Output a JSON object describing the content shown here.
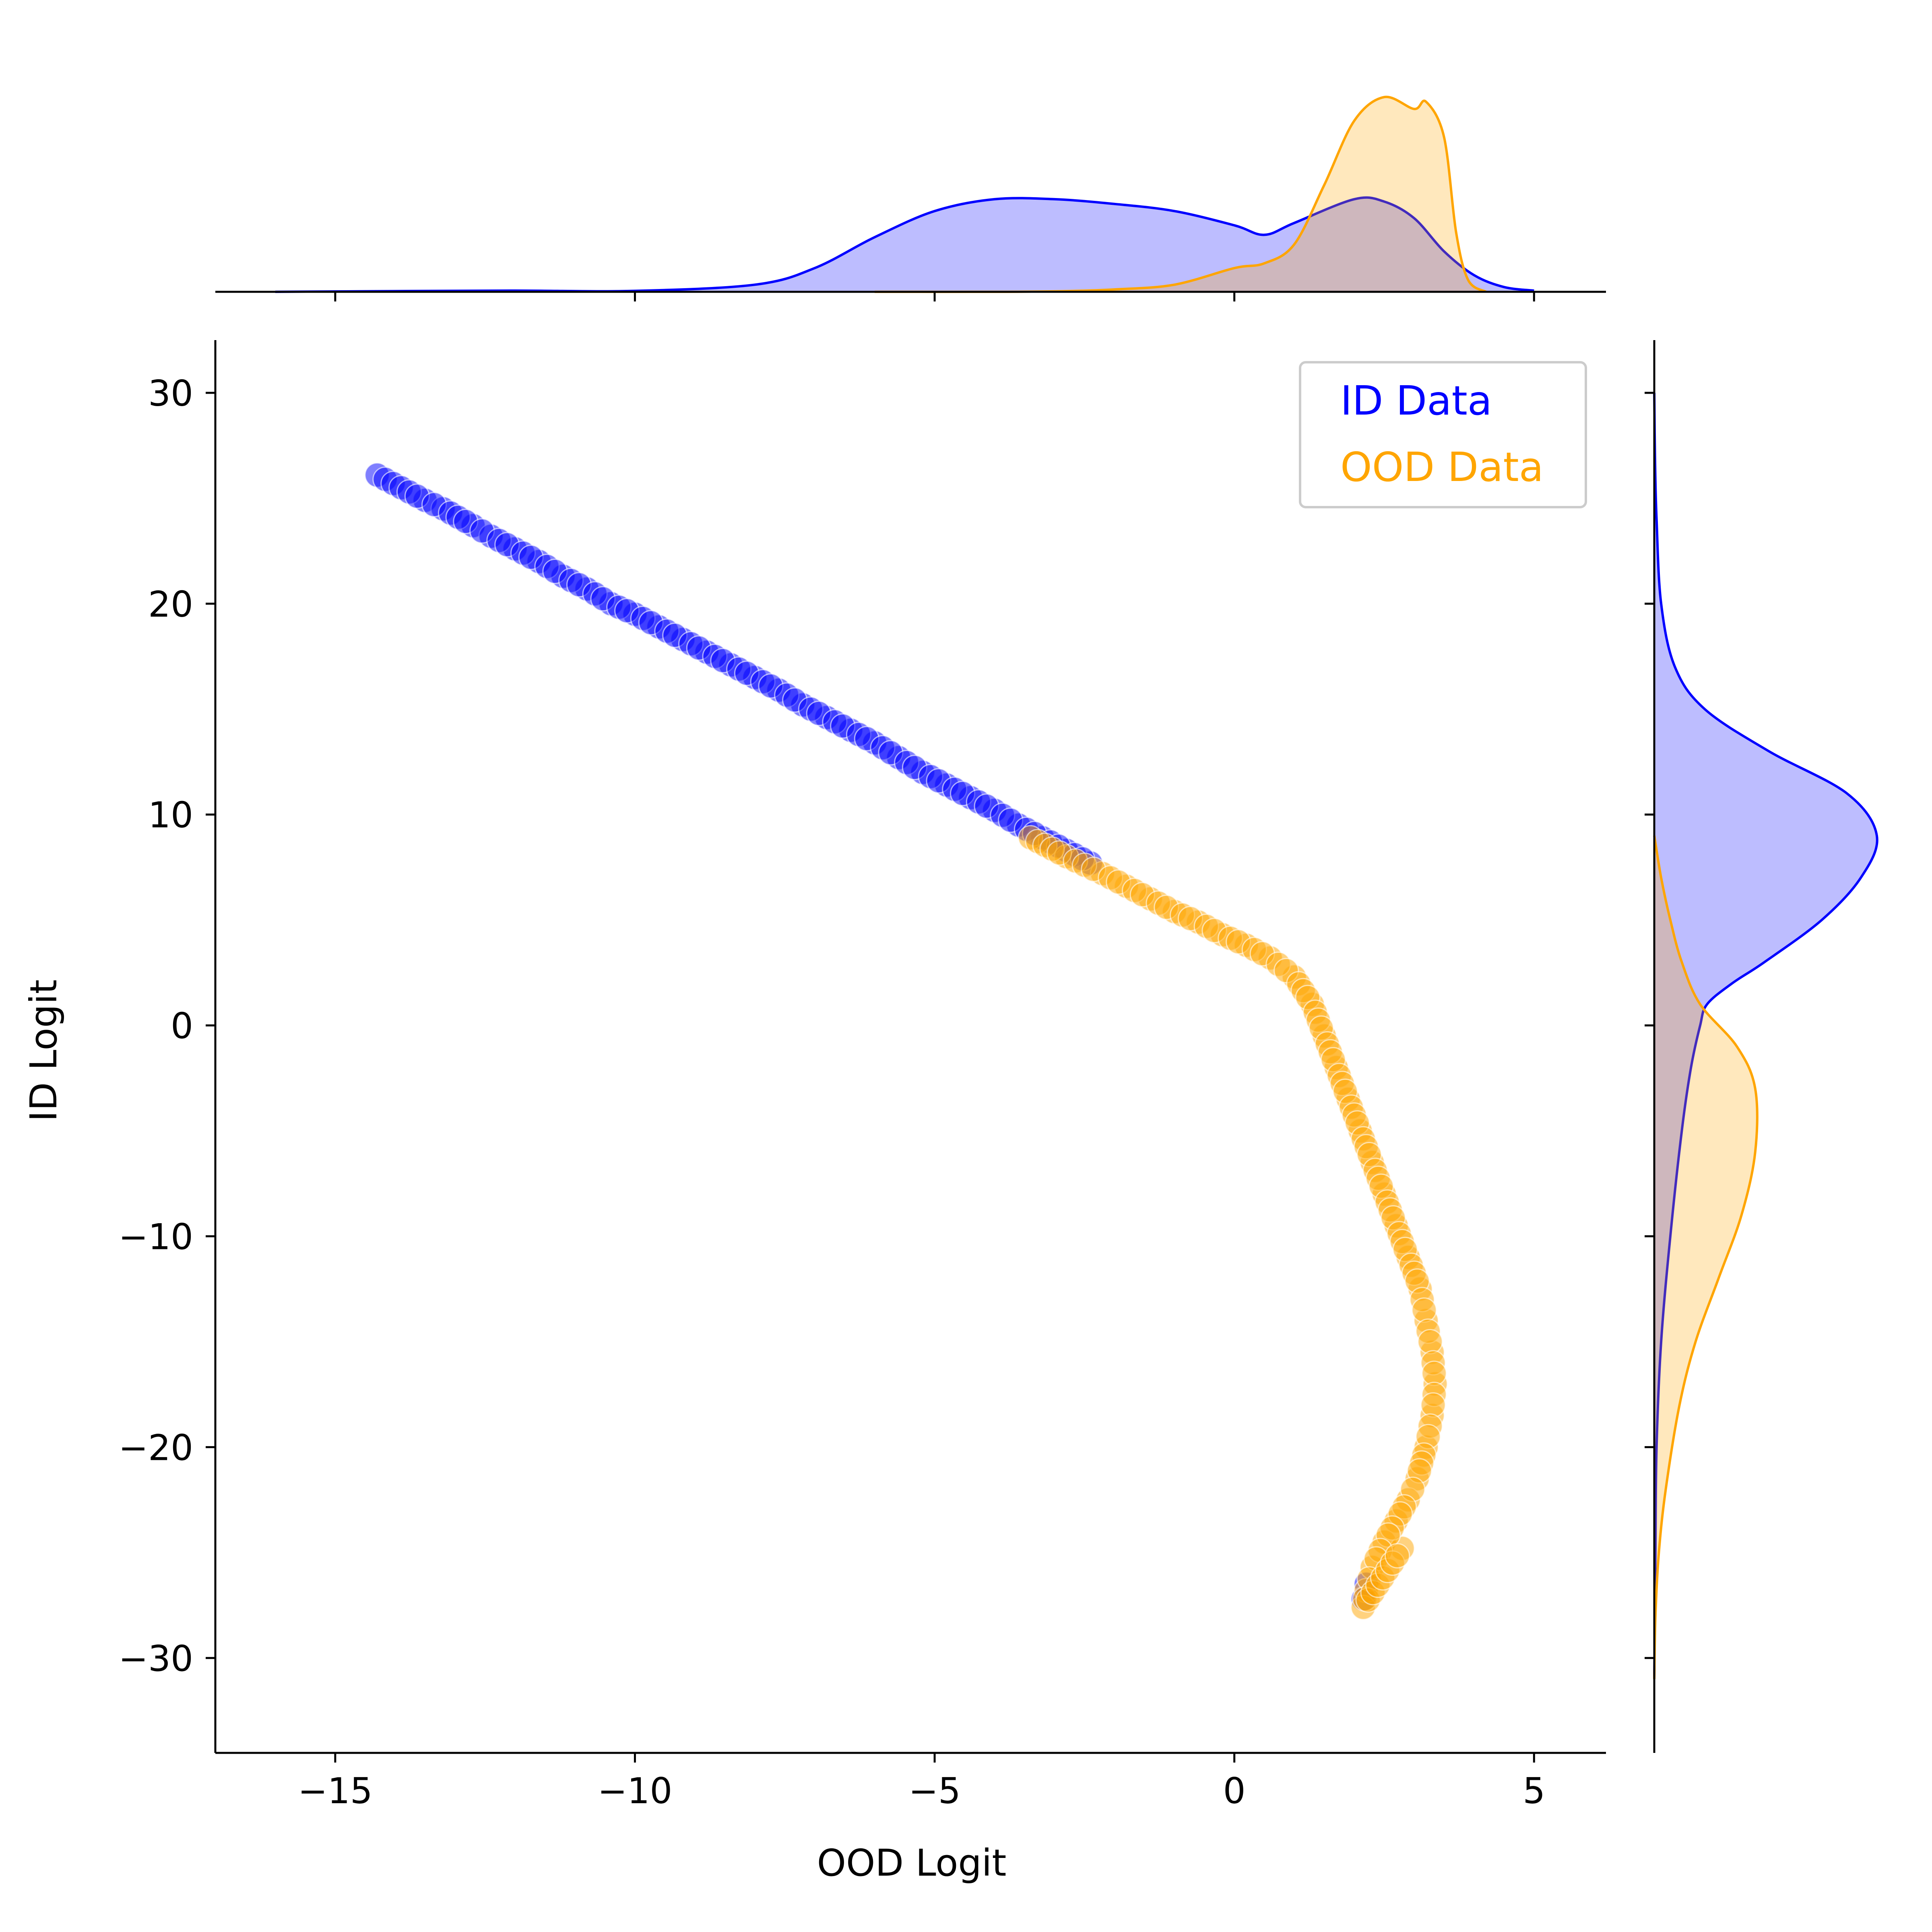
{
  "chart_data": {
    "type": "scatter",
    "xlabel": "OOD Logit",
    "ylabel": "ID Logit",
    "xlim": [
      -17,
      6.2
    ],
    "ylim": [
      -34.5,
      32.5
    ],
    "xticks": [
      -15,
      -10,
      -5,
      0,
      5
    ],
    "yticks": [
      30,
      20,
      10,
      0,
      -10,
      -20,
      -30
    ],
    "xtick_labels": [
      "−15",
      "−10",
      "−5",
      "0",
      "5"
    ],
    "ytick_labels": [
      "30",
      "20",
      "10",
      "0",
      "−10",
      "−20",
      "−30"
    ],
    "legend_position": "top-right",
    "series": [
      {
        "name": "ID Data",
        "color": "#0000ff",
        "points": [
          [
            -14.3,
            26.1
          ],
          [
            -13.5,
            24.9
          ],
          [
            -13.2,
            24.5
          ],
          [
            -12.7,
            23.7
          ],
          [
            -12.4,
            23.2
          ],
          [
            -12.0,
            22.6
          ],
          [
            -11.6,
            22.0
          ],
          [
            -11.2,
            21.3
          ],
          [
            -10.8,
            20.7
          ],
          [
            -10.4,
            20.0
          ],
          [
            -10.0,
            19.5
          ],
          [
            -9.6,
            18.9
          ],
          [
            -9.2,
            18.3
          ],
          [
            -8.8,
            17.7
          ],
          [
            -8.4,
            17.1
          ],
          [
            -8.0,
            16.5
          ],
          [
            -7.6,
            15.9
          ],
          [
            -7.2,
            15.2
          ],
          [
            -6.8,
            14.6
          ],
          [
            -6.4,
            14.0
          ],
          [
            -6.0,
            13.4
          ],
          [
            -5.6,
            12.7
          ],
          [
            -5.2,
            12.0
          ],
          [
            -4.8,
            11.4
          ],
          [
            -4.4,
            10.8
          ],
          [
            -4.0,
            10.2
          ],
          [
            -3.6,
            9.5
          ],
          [
            -3.2,
            8.9
          ],
          [
            -2.8,
            8.3
          ],
          [
            -2.4,
            7.7
          ],
          [
            2.2,
            -26.5
          ],
          [
            2.15,
            -27.2
          ]
        ],
        "kde_x": [
          [
            -16,
            0.0
          ],
          [
            -14,
            0.003
          ],
          [
            -12,
            0.005
          ],
          [
            -10,
            0.004
          ],
          [
            -8,
            0.03
          ],
          [
            -7,
            0.1
          ],
          [
            -6,
            0.23
          ],
          [
            -5,
            0.34
          ],
          [
            -4,
            0.39
          ],
          [
            -3,
            0.39
          ],
          [
            -2,
            0.37
          ],
          [
            -1,
            0.34
          ],
          [
            0,
            0.28
          ],
          [
            0.5,
            0.24
          ],
          [
            1,
            0.29
          ],
          [
            2,
            0.39
          ],
          [
            2.5,
            0.38
          ],
          [
            3,
            0.31
          ],
          [
            3.5,
            0.17
          ],
          [
            4,
            0.07
          ],
          [
            4.5,
            0.02
          ],
          [
            5,
            0.005
          ]
        ],
        "kde_y": [
          [
            -31,
            0.0
          ],
          [
            -25,
            0.005
          ],
          [
            -20,
            0.01
          ],
          [
            -15,
            0.03
          ],
          [
            -10,
            0.07
          ],
          [
            -5,
            0.12
          ],
          [
            -2,
            0.16
          ],
          [
            0,
            0.2
          ],
          [
            1,
            0.23
          ],
          [
            2,
            0.34
          ],
          [
            3,
            0.48
          ],
          [
            5,
            0.73
          ],
          [
            7,
            0.9
          ],
          [
            9,
            0.97
          ],
          [
            11,
            0.84
          ],
          [
            13,
            0.5
          ],
          [
            15,
            0.22
          ],
          [
            17,
            0.09
          ],
          [
            20,
            0.03
          ],
          [
            24,
            0.01
          ],
          [
            27,
            0.003
          ],
          [
            30,
            0.0
          ]
        ]
      },
      {
        "name": "OOD Data",
        "color": "#ffa500",
        "points": [
          [
            -3.4,
            8.9
          ],
          [
            -2.8,
            8.0
          ],
          [
            -2.2,
            7.2
          ],
          [
            -1.8,
            6.6
          ],
          [
            -1.4,
            6.0
          ],
          [
            -1.0,
            5.4
          ],
          [
            -0.6,
            4.9
          ],
          [
            -0.2,
            4.3
          ],
          [
            0.2,
            3.8
          ],
          [
            0.6,
            3.2
          ],
          [
            1.0,
            2.3
          ],
          [
            1.3,
            1.0
          ],
          [
            1.5,
            -0.5
          ],
          [
            1.7,
            -2.0
          ],
          [
            1.9,
            -3.5
          ],
          [
            2.1,
            -5.0
          ],
          [
            2.3,
            -6.5
          ],
          [
            2.5,
            -8.0
          ],
          [
            2.7,
            -9.5
          ],
          [
            2.9,
            -11.0
          ],
          [
            3.1,
            -12.5
          ],
          [
            3.2,
            -14.0
          ],
          [
            3.3,
            -15.5
          ],
          [
            3.35,
            -17.0
          ],
          [
            3.3,
            -18.5
          ],
          [
            3.2,
            -20.0
          ],
          [
            3.05,
            -21.5
          ],
          [
            2.9,
            -22.5
          ],
          [
            2.7,
            -23.5
          ],
          [
            2.5,
            -24.5
          ],
          [
            2.3,
            -25.7
          ],
          [
            2.2,
            -26.8
          ],
          [
            2.15,
            -27.6
          ],
          [
            2.8,
            -24.8
          ]
        ],
        "kde_x": [
          [
            -6,
            0.0
          ],
          [
            -4,
            0.0
          ],
          [
            -3,
            0.002
          ],
          [
            -2,
            0.01
          ],
          [
            -1,
            0.03
          ],
          [
            0,
            0.1
          ],
          [
            0.5,
            0.12
          ],
          [
            1,
            0.2
          ],
          [
            1.5,
            0.45
          ],
          [
            2,
            0.72
          ],
          [
            2.5,
            0.82
          ],
          [
            3,
            0.77
          ],
          [
            3.2,
            0.8
          ],
          [
            3.5,
            0.65
          ],
          [
            3.7,
            0.25
          ],
          [
            3.9,
            0.05
          ],
          [
            4.2,
            0.0
          ]
        ],
        "kde_y": [
          [
            -31,
            0.0
          ],
          [
            -28,
            0.005
          ],
          [
            -25,
            0.02
          ],
          [
            -22,
            0.05
          ],
          [
            -18,
            0.11
          ],
          [
            -15,
            0.18
          ],
          [
            -12,
            0.28
          ],
          [
            -9,
            0.38
          ],
          [
            -6,
            0.44
          ],
          [
            -3,
            0.44
          ],
          [
            -1,
            0.36
          ],
          [
            1,
            0.2
          ],
          [
            3,
            0.12
          ],
          [
            5,
            0.07
          ],
          [
            7,
            0.03
          ],
          [
            9,
            0.0
          ]
        ]
      }
    ]
  }
}
